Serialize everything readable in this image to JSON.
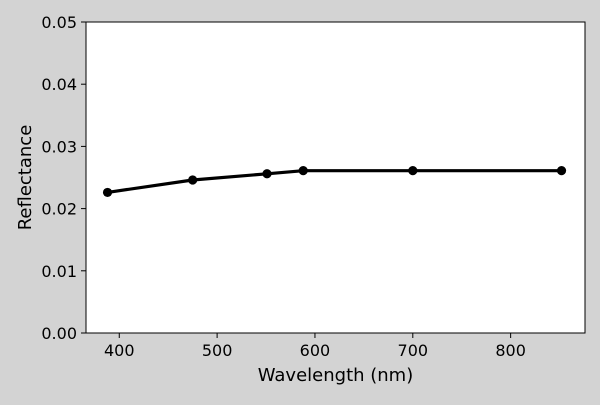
{
  "chart_data": {
    "type": "line",
    "title": "",
    "xlabel": "Wavelength (nm)",
    "ylabel": "Reflectance",
    "xlim": [
      366,
      876
    ],
    "ylim": [
      0.0,
      0.05
    ],
    "x_ticks": [
      400,
      500,
      600,
      700,
      800
    ],
    "x_tick_labels": [
      "400",
      "500",
      "600",
      "700",
      "800"
    ],
    "y_ticks": [
      0.0,
      0.01,
      0.02,
      0.03,
      0.04,
      0.05
    ],
    "y_tick_labels": [
      "0.00",
      "0.01",
      "0.02",
      "0.03",
      "0.04",
      "0.05"
    ],
    "grid": false,
    "series": [
      {
        "color": "#000000",
        "x": [
          388,
          475,
          551,
          588,
          700,
          852
        ],
        "y": [
          0.0226,
          0.0246,
          0.0256,
          0.0261,
          0.0261,
          0.0261
        ]
      }
    ]
  },
  "colors": {
    "figure_background": "#d3d3d3",
    "plot_background": "#ffffff",
    "line": "#000000"
  }
}
